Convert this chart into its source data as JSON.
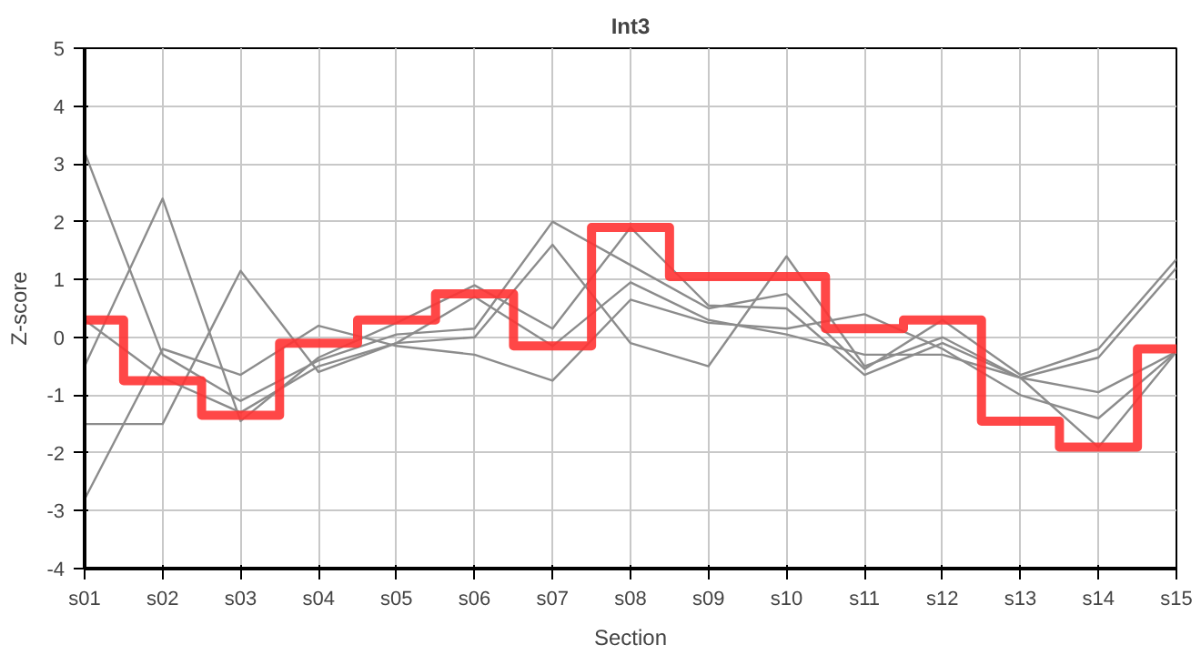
{
  "chart_data": {
    "type": "line",
    "title": "Int3",
    "xlabel": "Section",
    "ylabel": "Z-score",
    "categories": [
      "s01",
      "s02",
      "s03",
      "s04",
      "s05",
      "s06",
      "s07",
      "s08",
      "s09",
      "s10",
      "s11",
      "s12",
      "s13",
      "s14",
      "s15"
    ],
    "ylim": [
      -4,
      5
    ],
    "yticks": [
      -4,
      -3,
      -2,
      -1,
      0,
      1,
      2,
      3,
      4,
      5
    ],
    "grid": true,
    "marker": "none",
    "line_style": "solid",
    "series": [
      {
        "color": "#8c8c8c",
        "values": [
          3.2,
          -0.3,
          -1.1,
          -0.4,
          0.05,
          0.15,
          2.0,
          1.25,
          0.5,
          0.75,
          -0.55,
          0.3,
          -0.65,
          -0.2,
          1.35
        ]
      },
      {
        "color": "#8c8c8c",
        "values": [
          -0.5,
          2.4,
          -1.45,
          -0.35,
          0.25,
          0.9,
          0.15,
          1.9,
          0.55,
          0.5,
          -0.65,
          -0.1,
          -0.7,
          -0.35,
          1.2
        ]
      },
      {
        "color": "#8c8c8c",
        "values": [
          -1.5,
          -1.5,
          1.15,
          -0.6,
          -0.1,
          0.0,
          1.6,
          -0.1,
          -0.5,
          1.4,
          -0.5,
          0.0,
          -0.7,
          -1.9,
          -0.25
        ]
      },
      {
        "color": "#8c8c8c",
        "values": [
          -2.8,
          -0.2,
          -0.65,
          0.2,
          -0.15,
          -0.3,
          -0.75,
          0.65,
          0.25,
          0.15,
          0.4,
          -0.2,
          -1.0,
          -1.4,
          -0.25
        ]
      },
      {
        "color": "#8c8c8c",
        "values": [
          0.3,
          -0.7,
          -1.3,
          -0.5,
          -0.1,
          0.7,
          -0.15,
          0.95,
          0.3,
          0.05,
          -0.3,
          -0.3,
          -0.7,
          -0.95,
          -0.25
        ]
      },
      {
        "type": "step",
        "color": "#ff3333",
        "values": [
          0.3,
          -0.75,
          -1.35,
          -0.1,
          0.3,
          0.75,
          -0.15,
          1.9,
          1.05,
          1.05,
          0.15,
          0.3,
          -1.45,
          -1.9,
          -0.2
        ]
      }
    ]
  }
}
